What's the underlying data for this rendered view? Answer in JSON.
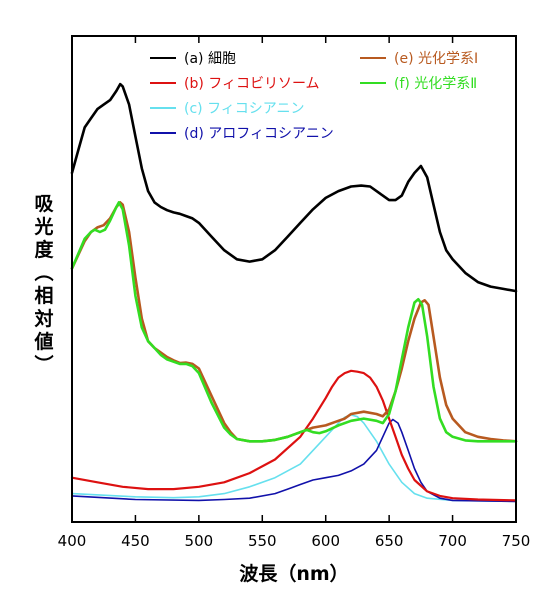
{
  "chart_data": {
    "type": "line",
    "title": "",
    "xlabel": "波長（nm）",
    "ylabel_chars": [
      "吸",
      "光",
      "度",
      "（",
      "相",
      "対",
      "値",
      "）"
    ],
    "xlim": [
      400,
      750
    ],
    "ylim": [
      0,
      1
    ],
    "xticks": [
      400,
      450,
      500,
      550,
      600,
      650,
      700,
      750
    ],
    "legend_position": "top",
    "series": [
      {
        "name": "(a) 細胞",
        "color": "#000000",
        "width": 2.6,
        "points": [
          [
            400,
            0.73
          ],
          [
            405,
            0.78
          ],
          [
            410,
            0.83
          ],
          [
            415,
            0.85
          ],
          [
            420,
            0.87
          ],
          [
            425,
            0.88
          ],
          [
            430,
            0.89
          ],
          [
            435,
            0.91
          ],
          [
            438,
            0.925
          ],
          [
            440,
            0.92
          ],
          [
            445,
            0.88
          ],
          [
            450,
            0.81
          ],
          [
            455,
            0.74
          ],
          [
            460,
            0.69
          ],
          [
            465,
            0.665
          ],
          [
            470,
            0.655
          ],
          [
            475,
            0.648
          ],
          [
            480,
            0.643
          ],
          [
            485,
            0.64
          ],
          [
            490,
            0.635
          ],
          [
            495,
            0.63
          ],
          [
            500,
            0.62
          ],
          [
            510,
            0.59
          ],
          [
            520,
            0.56
          ],
          [
            530,
            0.54
          ],
          [
            540,
            0.535
          ],
          [
            550,
            0.54
          ],
          [
            560,
            0.56
          ],
          [
            570,
            0.59
          ],
          [
            580,
            0.62
          ],
          [
            590,
            0.65
          ],
          [
            600,
            0.675
          ],
          [
            610,
            0.69
          ],
          [
            620,
            0.7
          ],
          [
            628,
            0.702
          ],
          [
            635,
            0.7
          ],
          [
            645,
            0.68
          ],
          [
            650,
            0.67
          ],
          [
            655,
            0.67
          ],
          [
            660,
            0.68
          ],
          [
            665,
            0.71
          ],
          [
            670,
            0.73
          ],
          [
            675,
            0.745
          ],
          [
            680,
            0.72
          ],
          [
            685,
            0.66
          ],
          [
            690,
            0.6
          ],
          [
            695,
            0.56
          ],
          [
            700,
            0.54
          ],
          [
            710,
            0.51
          ],
          [
            720,
            0.49
          ],
          [
            730,
            0.48
          ],
          [
            740,
            0.475
          ],
          [
            750,
            0.47
          ]
        ]
      },
      {
        "name": "(b) フィコビリソーム",
        "color": "#dd1111",
        "width": 2.2,
        "points": [
          [
            400,
            0.06
          ],
          [
            420,
            0.05
          ],
          [
            440,
            0.04
          ],
          [
            460,
            0.035
          ],
          [
            480,
            0.035
          ],
          [
            500,
            0.04
          ],
          [
            520,
            0.05
          ],
          [
            540,
            0.07
          ],
          [
            560,
            0.1
          ],
          [
            580,
            0.15
          ],
          [
            590,
            0.19
          ],
          [
            600,
            0.235
          ],
          [
            605,
            0.26
          ],
          [
            610,
            0.28
          ],
          [
            615,
            0.29
          ],
          [
            620,
            0.295
          ],
          [
            625,
            0.293
          ],
          [
            630,
            0.29
          ],
          [
            635,
            0.28
          ],
          [
            640,
            0.26
          ],
          [
            645,
            0.23
          ],
          [
            650,
            0.19
          ],
          [
            655,
            0.15
          ],
          [
            660,
            0.11
          ],
          [
            665,
            0.08
          ],
          [
            670,
            0.055
          ],
          [
            680,
            0.03
          ],
          [
            690,
            0.02
          ],
          [
            700,
            0.015
          ],
          [
            720,
            0.012
          ],
          [
            750,
            0.01
          ]
        ]
      },
      {
        "name": "(c) フィコシアニン",
        "color": "#66e0ee",
        "width": 1.6,
        "points": [
          [
            400,
            0.025
          ],
          [
            450,
            0.018
          ],
          [
            480,
            0.016
          ],
          [
            500,
            0.018
          ],
          [
            520,
            0.025
          ],
          [
            540,
            0.04
          ],
          [
            560,
            0.06
          ],
          [
            580,
            0.09
          ],
          [
            590,
            0.12
          ],
          [
            600,
            0.15
          ],
          [
            610,
            0.18
          ],
          [
            615,
            0.193
          ],
          [
            620,
            0.198
          ],
          [
            625,
            0.194
          ],
          [
            630,
            0.18
          ],
          [
            640,
            0.14
          ],
          [
            650,
            0.09
          ],
          [
            660,
            0.05
          ],
          [
            670,
            0.025
          ],
          [
            680,
            0.015
          ],
          [
            700,
            0.01
          ],
          [
            750,
            0.008
          ]
        ]
      },
      {
        "name": "(d) アロフィコシアニン",
        "color": "#1111aa",
        "width": 1.6,
        "points": [
          [
            400,
            0.02
          ],
          [
            450,
            0.012
          ],
          [
            500,
            0.01
          ],
          [
            520,
            0.012
          ],
          [
            540,
            0.015
          ],
          [
            560,
            0.025
          ],
          [
            570,
            0.035
          ],
          [
            580,
            0.045
          ],
          [
            590,
            0.055
          ],
          [
            600,
            0.06
          ],
          [
            610,
            0.065
          ],
          [
            620,
            0.075
          ],
          [
            630,
            0.09
          ],
          [
            640,
            0.12
          ],
          [
            645,
            0.15
          ],
          [
            650,
            0.18
          ],
          [
            653,
            0.188
          ],
          [
            657,
            0.18
          ],
          [
            660,
            0.16
          ],
          [
            665,
            0.12
          ],
          [
            670,
            0.08
          ],
          [
            675,
            0.05
          ],
          [
            680,
            0.03
          ],
          [
            690,
            0.015
          ],
          [
            700,
            0.01
          ],
          [
            750,
            0.008
          ]
        ]
      },
      {
        "name": "(e) 光化学系Ⅰ",
        "color": "#b85a20",
        "width": 2.6,
        "points": [
          [
            400,
            0.52
          ],
          [
            410,
            0.58
          ],
          [
            415,
            0.6
          ],
          [
            420,
            0.61
          ],
          [
            425,
            0.615
          ],
          [
            430,
            0.63
          ],
          [
            435,
            0.655
          ],
          [
            438,
            0.665
          ],
          [
            440,
            0.66
          ],
          [
            445,
            0.6
          ],
          [
            450,
            0.5
          ],
          [
            455,
            0.41
          ],
          [
            460,
            0.36
          ],
          [
            465,
            0.345
          ],
          [
            470,
            0.335
          ],
          [
            475,
            0.325
          ],
          [
            480,
            0.318
          ],
          [
            485,
            0.312
          ],
          [
            490,
            0.313
          ],
          [
            495,
            0.31
          ],
          [
            500,
            0.3
          ],
          [
            510,
            0.24
          ],
          [
            520,
            0.18
          ],
          [
            525,
            0.16
          ],
          [
            530,
            0.145
          ],
          [
            540,
            0.14
          ],
          [
            550,
            0.14
          ],
          [
            560,
            0.143
          ],
          [
            570,
            0.15
          ],
          [
            580,
            0.16
          ],
          [
            590,
            0.17
          ],
          [
            600,
            0.175
          ],
          [
            610,
            0.185
          ],
          [
            615,
            0.19
          ],
          [
            620,
            0.2
          ],
          [
            630,
            0.205
          ],
          [
            640,
            0.2
          ],
          [
            645,
            0.195
          ],
          [
            650,
            0.21
          ],
          [
            655,
            0.25
          ],
          [
            660,
            0.3
          ],
          [
            665,
            0.36
          ],
          [
            670,
            0.41
          ],
          [
            675,
            0.445
          ],
          [
            678,
            0.45
          ],
          [
            681,
            0.44
          ],
          [
            685,
            0.37
          ],
          [
            690,
            0.28
          ],
          [
            695,
            0.22
          ],
          [
            700,
            0.19
          ],
          [
            710,
            0.16
          ],
          [
            720,
            0.15
          ],
          [
            730,
            0.145
          ],
          [
            740,
            0.142
          ],
          [
            750,
            0.14
          ]
        ]
      },
      {
        "name": "(f) 光化学系Ⅱ",
        "color": "#33dd22",
        "width": 2.6,
        "points": [
          [
            400,
            0.52
          ],
          [
            410,
            0.585
          ],
          [
            415,
            0.6
          ],
          [
            418,
            0.605
          ],
          [
            422,
            0.6
          ],
          [
            426,
            0.605
          ],
          [
            430,
            0.625
          ],
          [
            435,
            0.655
          ],
          [
            437,
            0.665
          ],
          [
            440,
            0.65
          ],
          [
            445,
            0.57
          ],
          [
            450,
            0.46
          ],
          [
            455,
            0.39
          ],
          [
            460,
            0.36
          ],
          [
            465,
            0.345
          ],
          [
            470,
            0.33
          ],
          [
            475,
            0.32
          ],
          [
            480,
            0.315
          ],
          [
            485,
            0.31
          ],
          [
            490,
            0.31
          ],
          [
            495,
            0.305
          ],
          [
            500,
            0.29
          ],
          [
            510,
            0.225
          ],
          [
            520,
            0.17
          ],
          [
            525,
            0.155
          ],
          [
            530,
            0.145
          ],
          [
            540,
            0.14
          ],
          [
            550,
            0.14
          ],
          [
            560,
            0.143
          ],
          [
            570,
            0.15
          ],
          [
            580,
            0.16
          ],
          [
            585,
            0.165
          ],
          [
            590,
            0.16
          ],
          [
            595,
            0.158
          ],
          [
            600,
            0.162
          ],
          [
            610,
            0.175
          ],
          [
            620,
            0.185
          ],
          [
            630,
            0.19
          ],
          [
            640,
            0.185
          ],
          [
            645,
            0.18
          ],
          [
            650,
            0.2
          ],
          [
            655,
            0.25
          ],
          [
            660,
            0.32
          ],
          [
            665,
            0.39
          ],
          [
            670,
            0.445
          ],
          [
            673,
            0.452
          ],
          [
            676,
            0.44
          ],
          [
            680,
            0.37
          ],
          [
            685,
            0.26
          ],
          [
            690,
            0.19
          ],
          [
            695,
            0.16
          ],
          [
            700,
            0.15
          ],
          [
            710,
            0.142
          ],
          [
            720,
            0.14
          ],
          [
            750,
            0.14
          ]
        ]
      }
    ]
  }
}
